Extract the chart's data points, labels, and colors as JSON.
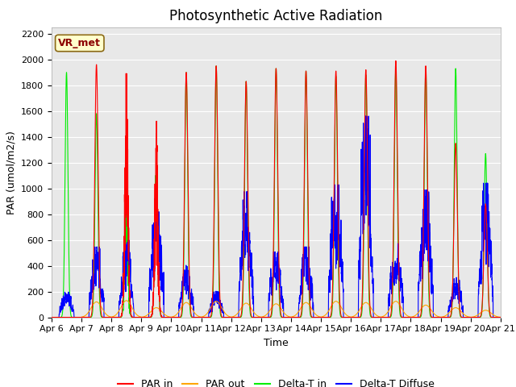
{
  "title": "Photosynthetic Active Radiation",
  "ylabel": "PAR (umol/m2/s)",
  "xlabel": "Time",
  "ylim": [
    0,
    2250
  ],
  "yticks": [
    0,
    200,
    400,
    600,
    800,
    1000,
    1200,
    1400,
    1600,
    1800,
    2000,
    2200
  ],
  "n_days": 15,
  "pts_per_day": 288,
  "colors": {
    "PAR in": "#ff0000",
    "PAR out": "#ffa500",
    "Delta-T in": "#00ee00",
    "Delta-T Diffuse": "#0000ff"
  },
  "annotation_text": "VR_met",
  "annotation_color": "#8b0000",
  "annotation_bg": "#ffffcc",
  "annotation_border": "#8b6914",
  "plot_bg": "#e8e8e8",
  "title_fontsize": 12,
  "axis_fontsize": 9,
  "tick_fontsize": 8,
  "legend_fontsize": 9,
  "linewidth": 0.8,
  "par_in_peaks": [
    0,
    1960,
    2040,
    1540,
    1900,
    1950,
    1830,
    1930,
    1910,
    1910,
    1920,
    1990,
    1950,
    1350,
    880
  ],
  "par_out_peaks": [
    0,
    120,
    130,
    75,
    115,
    125,
    110,
    105,
    115,
    125,
    115,
    125,
    95,
    75,
    55
  ],
  "delta_in_peaks": [
    1900,
    1580,
    1440,
    1280,
    1900,
    1950,
    1830,
    1930,
    1910,
    1870,
    1880,
    1940,
    1940,
    1930,
    1270
  ],
  "delta_diff_peaks": [
    150,
    420,
    460,
    710,
    310,
    155,
    750,
    390,
    420,
    790,
    1200,
    440,
    760,
    240,
    800
  ]
}
